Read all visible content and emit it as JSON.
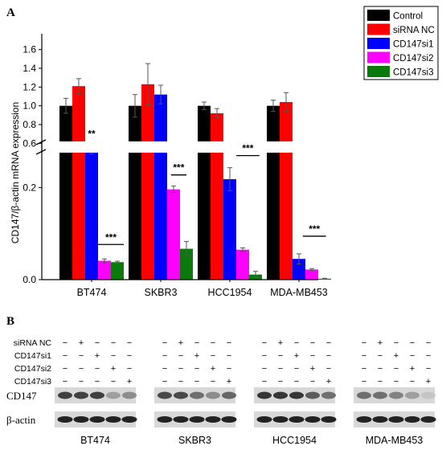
{
  "panel_a_letter": "A",
  "panel_b_letter": "B",
  "chart_data": {
    "type": "bar",
    "ylabel": "CD147/β-actin mRNA expression",
    "categories": [
      "BT474",
      "SKBR3",
      "HCC1954",
      "MDA-MB453"
    ],
    "y_axis_broken": true,
    "upper_segment_ylim": [
      0.5,
      1.7
    ],
    "lower_segment_ylim": [
      0,
      0.3
    ],
    "upper_ticks": [
      "0.6",
      "0.8",
      "1.0",
      "1.2",
      "1.4",
      "1.6"
    ],
    "lower_ticks": [
      "0.0",
      "0.2"
    ],
    "legend_position": "top-right",
    "series": [
      {
        "name": "Control",
        "color": "#000000",
        "values": [
          1.0,
          1.0,
          1.0,
          1.0
        ],
        "errors": [
          0.08,
          0.12,
          0.04,
          0.06
        ]
      },
      {
        "name": "siRNA NC",
        "color": "#ff0000",
        "values": [
          1.21,
          1.23,
          0.92,
          1.04
        ],
        "errors": [
          0.08,
          0.22,
          0.05,
          0.1
        ]
      },
      {
        "name": "CD147si1",
        "color": "#0000ff",
        "values": [
          0.279,
          1.12,
          0.218,
          0.045
        ],
        "errors": [
          0.006,
          0.1,
          0.025,
          0.011
        ]
      },
      {
        "name": "CD147si2",
        "color": "#ff00ff",
        "values": [
          0.041,
          0.196,
          0.065,
          0.022
        ],
        "errors": [
          0.004,
          0.007,
          0.004,
          0.002
        ]
      },
      {
        "name": "CD147si3",
        "color": "#0a7a0a",
        "values": [
          0.038,
          0.067,
          0.011,
          0.002
        ],
        "errors": [
          0.002,
          0.016,
          0.007,
          0.001
        ]
      }
    ],
    "annotations": [
      {
        "category": "BT474",
        "text": "**",
        "y": 0.31
      },
      {
        "category": "BT474",
        "text": "***",
        "y": 0.085
      },
      {
        "category": "SKBR3",
        "text": "***",
        "y": 0.236
      },
      {
        "category": "HCC1954",
        "text": "***",
        "y": 0.278
      },
      {
        "category": "MDA-MB453",
        "text": "***",
        "y": 0.103
      }
    ]
  },
  "blot": {
    "conditions": [
      "siRNA NC",
      "CD147si1",
      "CD147si2",
      "CD147si3"
    ],
    "lane_signs": [
      [
        "−",
        "+",
        "−",
        "−",
        "−"
      ],
      [
        "−",
        "−",
        "+",
        "−",
        "−"
      ],
      [
        "−",
        "−",
        "−",
        "+",
        "−"
      ],
      [
        "−",
        "−",
        "−",
        "−",
        "+"
      ]
    ],
    "rows": [
      "CD147",
      "β-actin"
    ],
    "cell_lines": [
      "BT474",
      "SKBR3",
      "HCC1954",
      "MDA-MB453"
    ],
    "cd147_band_intensity": [
      [
        0.85,
        0.85,
        0.85,
        0.35,
        0.45
      ],
      [
        0.8,
        0.8,
        0.6,
        0.45,
        0.65
      ],
      [
        0.9,
        0.9,
        0.9,
        0.7,
        0.6
      ],
      [
        0.6,
        0.6,
        0.5,
        0.35,
        0.15
      ]
    ]
  }
}
